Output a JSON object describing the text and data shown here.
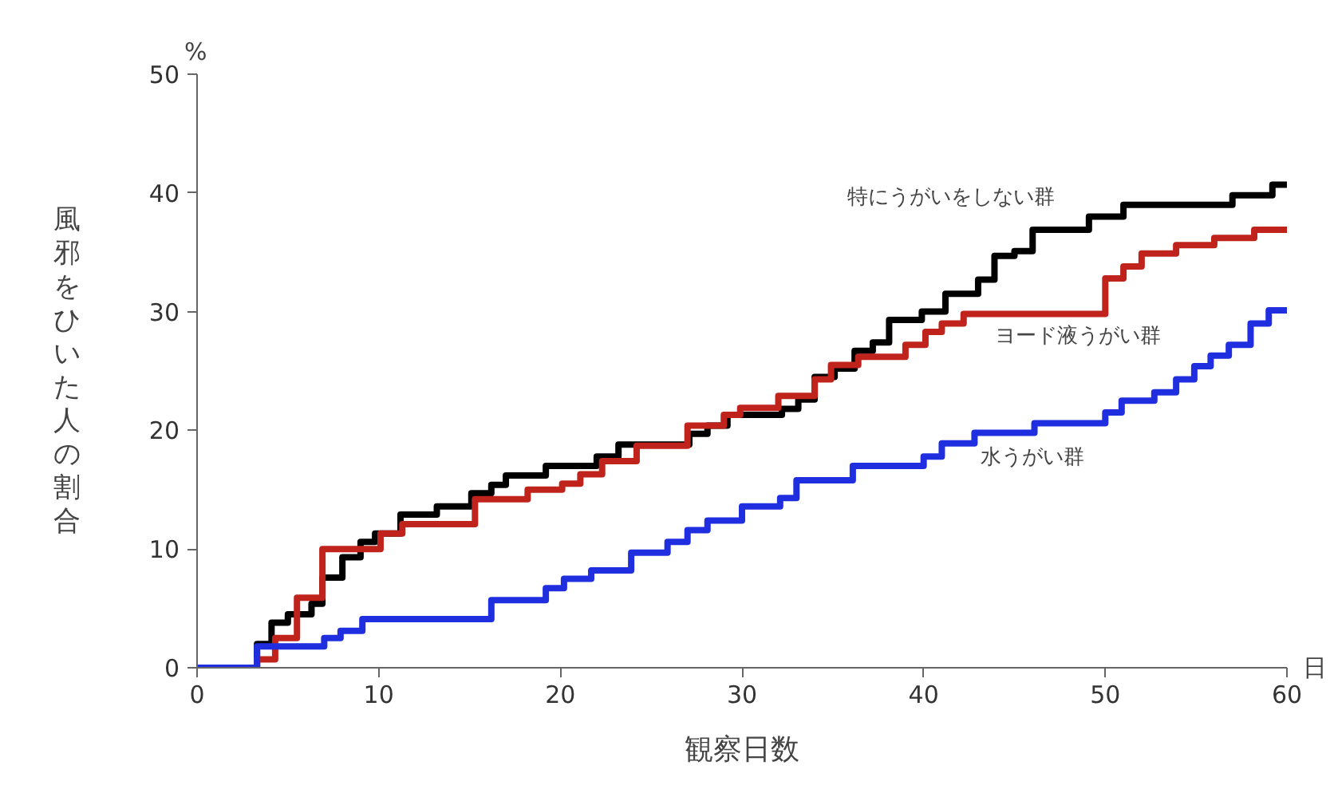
{
  "chart_data": {
    "type": "step",
    "xlabel": "観察日数",
    "ylabel": "風邪をひいた人の割合",
    "annotations": [
      "%",
      "日"
    ],
    "xlim": [
      0,
      60
    ],
    "ylim": [
      0,
      50
    ],
    "xticks": [
      0,
      10,
      20,
      30,
      40,
      50,
      60
    ],
    "yticks": [
      0,
      10,
      20,
      30,
      40,
      50
    ],
    "grid": false,
    "legend": false,
    "line_style": "solid",
    "marker": "none",
    "series": [
      {
        "name": "特にうがいをしない群",
        "color": "#000000",
        "x": [
          0,
          3.3,
          4.1,
          5.0,
          6.3,
          6.9,
          8.0,
          9.0,
          9.8,
          11.2,
          13.2,
          15.1,
          16.2,
          17.0,
          19.2,
          22.0,
          23.2,
          27.1,
          28.1,
          29.2,
          32.2,
          33.1,
          34.0,
          35.1,
          36.2,
          37.2,
          38.1,
          39.9,
          41.2,
          43.0,
          43.9,
          45.0,
          46.0,
          49.1,
          51.0,
          57.0,
          59.2,
          60
        ],
        "values": [
          0,
          2.0,
          3.8,
          4.5,
          5.4,
          7.6,
          9.3,
          10.6,
          11.3,
          12.9,
          13.6,
          14.7,
          15.4,
          16.2,
          17.0,
          17.8,
          18.8,
          19.7,
          20.4,
          21.3,
          21.8,
          22.6,
          24.5,
          25.2,
          26.7,
          27.4,
          29.3,
          30.0,
          31.5,
          32.7,
          34.7,
          35.1,
          36.9,
          38.0,
          39.0,
          39.8,
          40.7,
          40.7
        ]
      },
      {
        "name": "ヨード液うがい群",
        "color": "#c0231c",
        "x": [
          0,
          3.3,
          4.3,
          5.5,
          6.9,
          10.1,
          11.3,
          15.3,
          18.2,
          20.1,
          21.1,
          22.3,
          24.2,
          27.0,
          29.0,
          29.9,
          32.0,
          34.0,
          34.9,
          36.4,
          39.0,
          40.1,
          41.0,
          42.2,
          50.0,
          51.0,
          52.0,
          53.9,
          56.0,
          58.2,
          60
        ],
        "values": [
          0,
          0.7,
          2.5,
          5.9,
          10.0,
          11.3,
          12.1,
          14.2,
          15.0,
          15.5,
          16.3,
          17.4,
          18.7,
          20.4,
          21.3,
          21.9,
          22.9,
          24.3,
          25.5,
          26.2,
          27.2,
          28.3,
          29.0,
          29.8,
          32.8,
          33.8,
          34.9,
          35.6,
          36.2,
          36.9,
          36.9
        ]
      },
      {
        "name": "水うがい群",
        "color": "#1f2fe0",
        "x": [
          0,
          3.3,
          7.0,
          7.9,
          9.1,
          16.2,
          19.2,
          20.2,
          21.7,
          23.9,
          25.9,
          27.0,
          28.1,
          30.0,
          32.1,
          33.0,
          36.1,
          40.0,
          41.0,
          42.8,
          46.1,
          50.0,
          50.9,
          52.7,
          53.9,
          54.9,
          55.8,
          56.8,
          58.0,
          59.0,
          60
        ],
        "values": [
          0,
          1.8,
          2.5,
          3.1,
          4.1,
          5.7,
          6.7,
          7.5,
          8.2,
          9.7,
          10.6,
          11.6,
          12.4,
          13.6,
          14.3,
          15.8,
          17.0,
          17.8,
          18.9,
          19.8,
          20.6,
          21.5,
          22.5,
          23.2,
          24.3,
          25.4,
          26.3,
          27.2,
          29.0,
          30.1,
          30.1
        ]
      }
    ]
  }
}
